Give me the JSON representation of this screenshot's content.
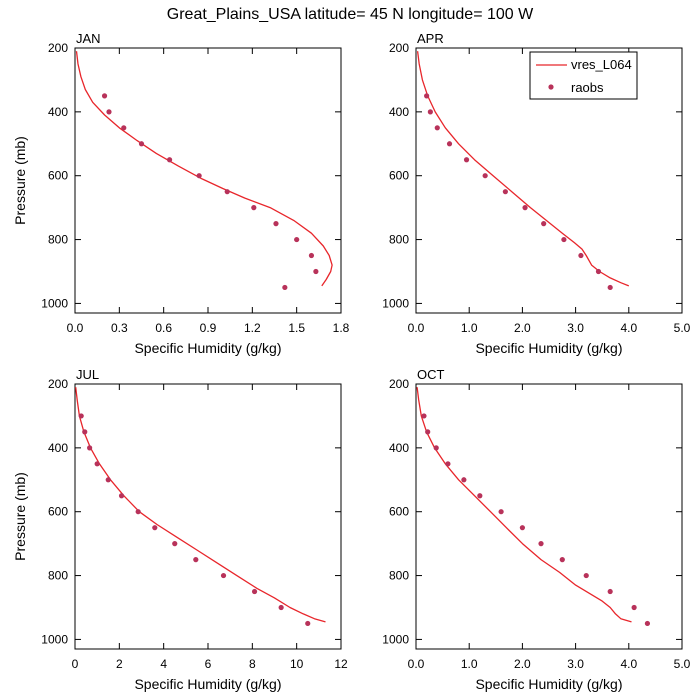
{
  "figure": {
    "title": "Great_Plains_USA  latitude= 45 N longitude= 100 W"
  },
  "legend": {
    "placement": "top-right of APR panel",
    "line_label": "vres_L064",
    "marker_label": "raobs"
  },
  "colors": {
    "model_line": "#e8262b",
    "obs_marker": "#b8325a"
  },
  "chart_data": [
    {
      "type": "line",
      "panel": "JAN",
      "title": "JAN",
      "xlabel": "Specific Humidity (g/kg)",
      "ylabel": "Pressure (mb)",
      "xlim": [
        0,
        1.8
      ],
      "ylim": [
        200,
        1030
      ],
      "y_inverted": true,
      "xticks": [
        0.0,
        0.3,
        0.6,
        0.9,
        1.2,
        1.5,
        1.8
      ],
      "xtick_labels": [
        "0.0",
        "0.3",
        "0.6",
        "0.9",
        "1.2",
        "1.5",
        "1.8"
      ],
      "yticks": [
        200,
        400,
        600,
        800,
        1000
      ],
      "ytick_labels": [
        "200",
        "400",
        "600",
        "800",
        "1000"
      ],
      "series": [
        {
          "name": "vres_L064",
          "kind": "line",
          "x": [
            0.01,
            0.02,
            0.04,
            0.07,
            0.12,
            0.2,
            0.3,
            0.42,
            0.55,
            0.7,
            0.86,
            1.0,
            1.15,
            1.32,
            1.48,
            1.6,
            1.68,
            1.72,
            1.74,
            1.73,
            1.7,
            1.67
          ],
          "y": [
            210,
            250,
            290,
            330,
            370,
            410,
            450,
            490,
            530,
            570,
            610,
            640,
            670,
            700,
            740,
            780,
            820,
            850,
            880,
            900,
            925,
            945
          ]
        },
        {
          "name": "raobs",
          "kind": "scatter",
          "x": [
            0.2,
            0.23,
            0.33,
            0.45,
            0.64,
            0.84,
            1.03,
            1.21,
            1.36,
            1.5,
            1.6,
            1.63,
            1.42
          ],
          "y": [
            350,
            400,
            450,
            500,
            550,
            600,
            650,
            700,
            750,
            800,
            850,
            900,
            950
          ]
        }
      ]
    },
    {
      "type": "line",
      "panel": "APR",
      "title": "APR",
      "xlabel": "Specific Humidity (g/kg)",
      "ylabel": "",
      "xlim": [
        0,
        5
      ],
      "ylim": [
        200,
        1030
      ],
      "y_inverted": true,
      "xticks": [
        0.0,
        1.0,
        2.0,
        3.0,
        4.0,
        5.0
      ],
      "xtick_labels": [
        "0.0",
        "1.0",
        "2.0",
        "3.0",
        "4.0",
        "5.0"
      ],
      "yticks": [
        200,
        400,
        600,
        800,
        1000
      ],
      "ytick_labels": [
        "200",
        "400",
        "600",
        "800",
        "1000"
      ],
      "series": [
        {
          "name": "vres_L064",
          "kind": "line",
          "x": [
            0.03,
            0.06,
            0.12,
            0.22,
            0.36,
            0.55,
            0.8,
            1.1,
            1.45,
            1.8,
            2.15,
            2.45,
            2.75,
            2.98,
            3.12,
            3.2,
            3.3,
            3.45,
            3.65,
            3.85,
            4.0
          ],
          "y": [
            210,
            250,
            300,
            350,
            400,
            450,
            500,
            550,
            600,
            650,
            700,
            740,
            780,
            810,
            830,
            850,
            880,
            900,
            920,
            935,
            945
          ]
        },
        {
          "name": "raobs",
          "kind": "scatter",
          "x": [
            0.2,
            0.27,
            0.4,
            0.63,
            0.95,
            1.3,
            1.68,
            2.05,
            2.4,
            2.78,
            3.1,
            3.43,
            3.65
          ],
          "y": [
            350,
            400,
            450,
            500,
            550,
            600,
            650,
            700,
            750,
            800,
            850,
            900,
            950
          ]
        }
      ]
    },
    {
      "type": "line",
      "panel": "JUL",
      "title": "JUL",
      "xlabel": "Specific Humidity (g/kg)",
      "ylabel": "Pressure (mb)",
      "xlim": [
        0,
        12
      ],
      "ylim": [
        200,
        1030
      ],
      "y_inverted": true,
      "xticks": [
        0,
        2,
        4,
        6,
        8,
        10,
        12
      ],
      "xtick_labels": [
        "0",
        "2",
        "4",
        "6",
        "8",
        "10",
        "12"
      ],
      "yticks": [
        200,
        400,
        600,
        800,
        1000
      ],
      "ytick_labels": [
        "200",
        "400",
        "600",
        "800",
        "1000"
      ],
      "series": [
        {
          "name": "vres_L064",
          "kind": "line",
          "x": [
            0.03,
            0.1,
            0.2,
            0.4,
            0.7,
            1.1,
            1.6,
            2.2,
            2.9,
            3.7,
            4.6,
            5.5,
            6.4,
            7.3,
            8.2,
            9.0,
            9.7,
            10.3,
            10.8,
            11.3
          ],
          "y": [
            210,
            250,
            300,
            350,
            400,
            450,
            500,
            550,
            600,
            640,
            680,
            720,
            760,
            800,
            840,
            870,
            900,
            920,
            935,
            945
          ]
        },
        {
          "name": "raobs",
          "kind": "scatter",
          "x": [
            0.28,
            0.44,
            0.66,
            1.0,
            1.5,
            2.1,
            2.85,
            3.6,
            4.5,
            5.45,
            6.7,
            8.1,
            9.3,
            10.5
          ],
          "y": [
            300,
            350,
            400,
            450,
            500,
            550,
            600,
            650,
            700,
            750,
            800,
            850,
            900,
            950
          ]
        }
      ]
    },
    {
      "type": "line",
      "panel": "OCT",
      "title": "OCT",
      "xlabel": "Specific Humidity (g/kg)",
      "ylabel": "",
      "xlim": [
        0,
        5
      ],
      "ylim": [
        200,
        1030
      ],
      "y_inverted": true,
      "xticks": [
        0.0,
        1.0,
        2.0,
        3.0,
        4.0,
        5.0
      ],
      "xtick_labels": [
        "0.0",
        "1.0",
        "2.0",
        "3.0",
        "4.0",
        "5.0"
      ],
      "yticks": [
        200,
        400,
        600,
        800,
        1000
      ],
      "ytick_labels": [
        "200",
        "400",
        "600",
        "800",
        "1000"
      ],
      "series": [
        {
          "name": "vres_L064",
          "kind": "line",
          "x": [
            0.02,
            0.05,
            0.1,
            0.2,
            0.35,
            0.55,
            0.8,
            1.1,
            1.4,
            1.7,
            2.0,
            2.35,
            2.7,
            3.0,
            3.3,
            3.5,
            3.65,
            3.75,
            3.85,
            4.05
          ],
          "y": [
            210,
            250,
            300,
            350,
            400,
            450,
            500,
            550,
            600,
            650,
            700,
            750,
            790,
            830,
            860,
            880,
            900,
            920,
            935,
            945
          ]
        },
        {
          "name": "raobs",
          "kind": "scatter",
          "x": [
            0.15,
            0.22,
            0.38,
            0.6,
            0.9,
            1.2,
            1.6,
            2.0,
            2.35,
            2.75,
            3.2,
            3.65,
            4.1,
            4.35
          ],
          "y": [
            300,
            350,
            400,
            450,
            500,
            550,
            600,
            650,
            700,
            750,
            800,
            850,
            900,
            950
          ]
        }
      ]
    }
  ]
}
